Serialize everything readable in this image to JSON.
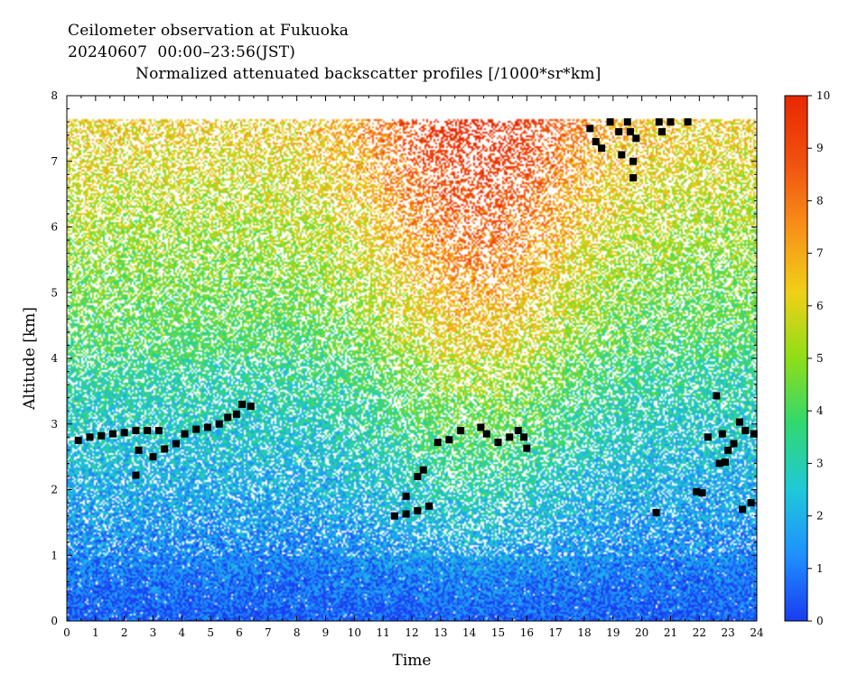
{
  "header": {
    "line1": "Ceilometer observation at Fukuoka",
    "line2": "20240607  00:00–23:56(JST)",
    "line3": "Normalized attenuated backscatter profiles [/1000*sr*km]"
  },
  "chart_data": {
    "type": "heatmap",
    "xlabel": "Time",
    "ylabel": "Altitude [km]",
    "xlim": [
      0,
      24
    ],
    "ylim": [
      0,
      8
    ],
    "xticks": [
      "0",
      "1",
      "2",
      "3",
      "4",
      "5",
      "6",
      "7",
      "8",
      "9",
      "10",
      "11",
      "12",
      "13",
      "14",
      "15",
      "16",
      "17",
      "18",
      "19",
      "20",
      "21",
      "22",
      "23",
      "24"
    ],
    "yticks": [
      "0",
      "1",
      "2",
      "3",
      "4",
      "5",
      "6",
      "7",
      "8"
    ],
    "data_top_km": 7.65,
    "colorbar": {
      "range": [
        0,
        10
      ],
      "ticks": [
        "0",
        "1",
        "2",
        "3",
        "4",
        "5",
        "6",
        "7",
        "8",
        "9",
        "10"
      ],
      "colors": [
        "#1a3cf0",
        "#1e90ff",
        "#20c8d8",
        "#30d870",
        "#8ede18",
        "#f0d018",
        "#f89018",
        "#f05010",
        "#e82800"
      ]
    },
    "cloud_marker_color": "#000000",
    "cloud_base_km": [
      {
        "t": 0.4,
        "h": 2.75
      },
      {
        "t": 0.8,
        "h": 2.8
      },
      {
        "t": 1.2,
        "h": 2.82
      },
      {
        "t": 1.6,
        "h": 2.85
      },
      {
        "t": 2.0,
        "h": 2.87
      },
      {
        "t": 2.4,
        "h": 2.9
      },
      {
        "t": 2.5,
        "h": 2.6
      },
      {
        "t": 2.4,
        "h": 2.22
      },
      {
        "t": 2.8,
        "h": 2.9
      },
      {
        "t": 3.0,
        "h": 2.5
      },
      {
        "t": 3.2,
        "h": 2.9
      },
      {
        "t": 3.4,
        "h": 2.62
      },
      {
        "t": 3.8,
        "h": 2.7
      },
      {
        "t": 4.1,
        "h": 2.85
      },
      {
        "t": 4.5,
        "h": 2.92
      },
      {
        "t": 4.9,
        "h": 2.95
      },
      {
        "t": 5.3,
        "h": 3.0
      },
      {
        "t": 5.6,
        "h": 3.1
      },
      {
        "t": 5.9,
        "h": 3.15
      },
      {
        "t": 6.1,
        "h": 3.3
      },
      {
        "t": 6.4,
        "h": 3.27
      },
      {
        "t": 11.4,
        "h": 1.6
      },
      {
        "t": 11.8,
        "h": 1.63
      },
      {
        "t": 11.8,
        "h": 1.9
      },
      {
        "t": 12.2,
        "h": 1.68
      },
      {
        "t": 12.2,
        "h": 2.2
      },
      {
        "t": 12.4,
        "h": 2.3
      },
      {
        "t": 12.6,
        "h": 1.75
      },
      {
        "t": 12.9,
        "h": 2.72
      },
      {
        "t": 13.3,
        "h": 2.76
      },
      {
        "t": 13.7,
        "h": 2.9
      },
      {
        "t": 14.4,
        "h": 2.95
      },
      {
        "t": 14.6,
        "h": 2.85
      },
      {
        "t": 15.0,
        "h": 2.72
      },
      {
        "t": 15.4,
        "h": 2.8
      },
      {
        "t": 15.7,
        "h": 2.9
      },
      {
        "t": 15.9,
        "h": 2.8
      },
      {
        "t": 16.0,
        "h": 2.63
      },
      {
        "t": 18.2,
        "h": 7.5
      },
      {
        "t": 18.4,
        "h": 7.3
      },
      {
        "t": 18.6,
        "h": 7.2
      },
      {
        "t": 18.9,
        "h": 7.6
      },
      {
        "t": 19.2,
        "h": 7.45
      },
      {
        "t": 19.3,
        "h": 7.1
      },
      {
        "t": 19.5,
        "h": 7.6
      },
      {
        "t": 19.6,
        "h": 7.45
      },
      {
        "t": 19.7,
        "h": 7.0
      },
      {
        "t": 19.8,
        "h": 7.35
      },
      {
        "t": 19.7,
        "h": 6.75
      },
      {
        "t": 20.6,
        "h": 7.6
      },
      {
        "t": 20.7,
        "h": 7.45
      },
      {
        "t": 21.0,
        "h": 7.6
      },
      {
        "t": 21.6,
        "h": 7.6
      },
      {
        "t": 20.5,
        "h": 1.65
      },
      {
        "t": 21.9,
        "h": 1.97
      },
      {
        "t": 22.1,
        "h": 1.95
      },
      {
        "t": 22.3,
        "h": 2.8
      },
      {
        "t": 22.6,
        "h": 3.43
      },
      {
        "t": 22.7,
        "h": 2.4
      },
      {
        "t": 22.9,
        "h": 2.42
      },
      {
        "t": 22.8,
        "h": 2.85
      },
      {
        "t": 23.0,
        "h": 2.6
      },
      {
        "t": 23.2,
        "h": 2.7
      },
      {
        "t": 23.4,
        "h": 3.03
      },
      {
        "t": 23.5,
        "h": 1.7
      },
      {
        "t": 23.6,
        "h": 2.9
      },
      {
        "t": 23.8,
        "h": 1.8
      },
      {
        "t": 23.9,
        "h": 2.85
      }
    ]
  }
}
